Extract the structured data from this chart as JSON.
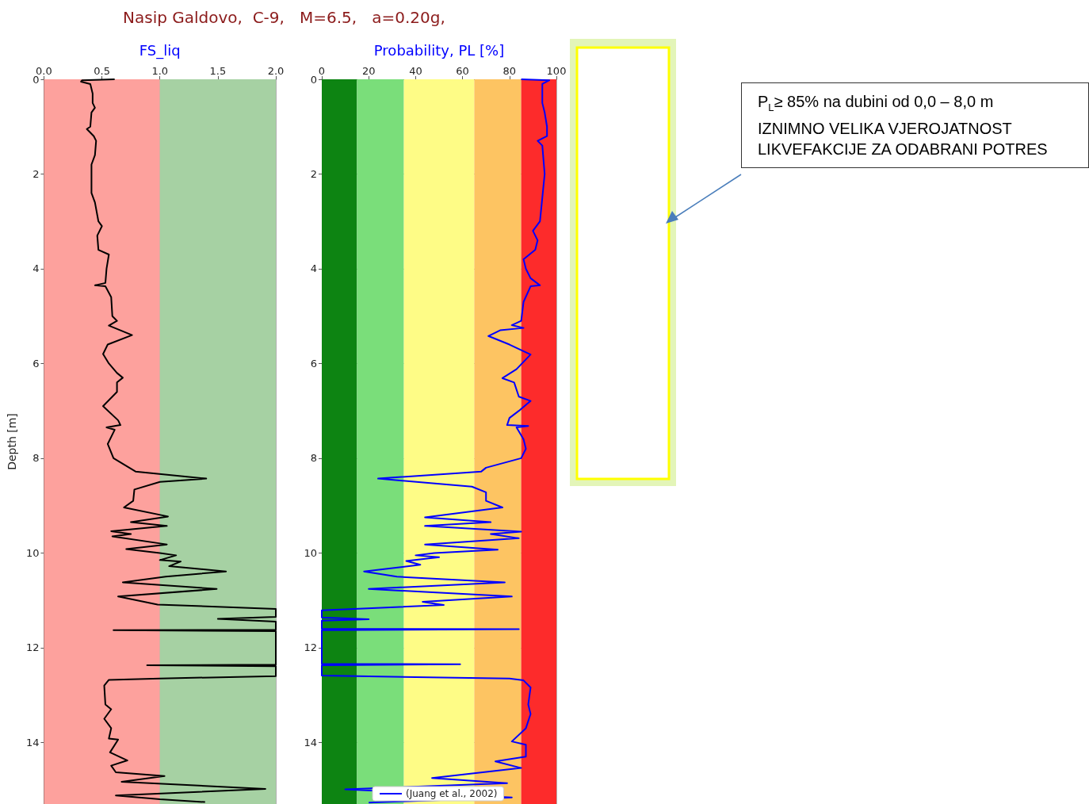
{
  "chart_data": [
    {
      "type": "line",
      "title": "Nasip Galdovo,  C-9,   M=6.5,   a=0.20g,",
      "xlabel": "FS_liq",
      "ylabel": "Depth [m]",
      "xlim": [
        0,
        2
      ],
      "xticks": [
        {
          "value": 0,
          "label": "0.0"
        },
        {
          "value": 0.5,
          "label": "0.5"
        },
        {
          "value": 1,
          "label": "1.0"
        },
        {
          "value": 1.5,
          "label": "1.5"
        },
        {
          "value": 2,
          "label": "2.0"
        }
      ],
      "ylim": [
        15.3,
        0
      ],
      "yticks": [
        0,
        2,
        4,
        6,
        8,
        10,
        12,
        14
      ],
      "grid": true,
      "marker": "none",
      "line_style": "solid",
      "bands": [
        {
          "axis": "x",
          "from": 0,
          "to": 1,
          "color": "#fda19d"
        },
        {
          "axis": "x",
          "from": 1,
          "to": 2,
          "color": "#a6d1a3"
        }
      ],
      "series": [
        {
          "color": "#000000",
          "x": [
            0.61,
            0.33,
            0.32,
            0.4,
            0.42,
            0.42,
            0.44,
            0.41,
            0.4,
            0.37,
            0.43,
            0.45,
            0.44,
            0.41,
            0.41,
            0.41,
            0.44,
            0.47,
            0.5,
            0.46,
            0.47,
            0.56,
            0.54,
            0.53,
            0.44,
            0.53,
            0.58,
            0.59,
            0.63,
            0.56,
            0.66,
            0.76,
            0.55,
            0.51,
            0.56,
            0.63,
            0.68,
            0.63,
            0.63,
            0.51,
            0.64,
            0.66,
            0.54,
            0.61,
            0.55,
            0.6,
            0.79,
            1.4,
            1.0,
            0.78,
            0.77,
            0.69,
            1.07,
            0.75,
            1.06,
            0.58,
            0.75,
            0.59,
            1.06,
            0.71,
            1.0,
            1.14,
            1.0,
            1.18,
            1.08,
            1.57,
            1.05,
            0.68,
            1.49,
            0.64,
            0.98,
            2.0,
            2.0,
            1.5,
            2.0,
            2.0,
            0.6,
            2.0,
            2.0,
            0.89,
            2.0,
            2.0,
            1.0,
            0.56,
            0.52,
            0.53,
            0.58,
            0.52,
            0.58,
            0.56,
            0.64,
            0.57,
            0.72,
            0.58,
            0.62,
            1.04,
            0.67,
            1.91,
            0.62,
            1.0,
            1.39
          ],
          "values": [
            0,
            0.02,
            0.05,
            0.1,
            0.3,
            0.5,
            0.6,
            0.7,
            1.0,
            1.05,
            1.2,
            1.3,
            1.6,
            1.8,
            2.0,
            2.4,
            2.6,
            3.0,
            3.1,
            3.3,
            3.6,
            3.7,
            4.0,
            4.3,
            4.35,
            4.37,
            4.6,
            5.0,
            5.1,
            5.2,
            5.3,
            5.4,
            5.6,
            5.8,
            6.0,
            6.2,
            6.3,
            6.4,
            6.6,
            6.9,
            7.2,
            7.3,
            7.35,
            7.4,
            7.7,
            8.0,
            8.28,
            8.43,
            8.5,
            8.66,
            8.9,
            9.04,
            9.23,
            9.35,
            9.43,
            9.54,
            9.6,
            9.65,
            9.82,
            9.92,
            10.0,
            10.05,
            10.15,
            10.18,
            10.28,
            10.39,
            10.5,
            10.62,
            10.76,
            10.92,
            11.09,
            11.18,
            11.35,
            11.39,
            11.45,
            11.62,
            11.63,
            11.65,
            12.36,
            12.37,
            12.39,
            12.6,
            12.65,
            12.68,
            12.8,
            13.2,
            13.3,
            13.5,
            13.7,
            13.92,
            13.94,
            14.21,
            14.38,
            14.49,
            14.63,
            14.71,
            14.83,
            14.98,
            15.12,
            15.2,
            15.26
          ]
        }
      ]
    },
    {
      "type": "line",
      "xlabel": "Probability, PL [%]",
      "xlim": [
        0,
        100
      ],
      "xticks": [
        0,
        20,
        40,
        60,
        80,
        100
      ],
      "ylim": [
        15.3,
        0
      ],
      "yticks": [
        0,
        2,
        4,
        6,
        8,
        10,
        12,
        14
      ],
      "grid": true,
      "marker": "none",
      "line_style": "solid",
      "legend": "bottom",
      "bands": [
        {
          "axis": "x",
          "from": 0,
          "to": 15,
          "color": "#0d8412"
        },
        {
          "axis": "x",
          "from": 15,
          "to": 35,
          "color": "#7ade7a"
        },
        {
          "axis": "x",
          "from": 35,
          "to": 65,
          "color": "#fefc86"
        },
        {
          "axis": "x",
          "from": 65,
          "to": 85,
          "color": "#fdc462"
        },
        {
          "axis": "x",
          "from": 85,
          "to": 100,
          "color": "#fd2b2b"
        }
      ],
      "annotations": [
        "P$_{L}$≥ 85% na dubini od 0,0 – 8,0 m\nIZNIMNO VELIKA VJEROJATNOST\nLIKVEFAKCIJE ZA ODABRANI POTRES"
      ],
      "series": [
        {
          "name": "(Juang et al., 2002)",
          "color": "#0000ff",
          "x": [
            85,
            97,
            94,
            94,
            95,
            96,
            96,
            92,
            94,
            95,
            94,
            93,
            90,
            92,
            91,
            86,
            87,
            89,
            93,
            89,
            86,
            85,
            81,
            86,
            76,
            71,
            80,
            89,
            83,
            77,
            82,
            84,
            89,
            84,
            80,
            79,
            88,
            83,
            86,
            87,
            85,
            70,
            68,
            24,
            64,
            70,
            70,
            77,
            44,
            72,
            44,
            85,
            72,
            84,
            44,
            75,
            48,
            40,
            50,
            36,
            42,
            18,
            32,
            78,
            20,
            81,
            43,
            52,
            0,
            0,
            20,
            0,
            0,
            84,
            0,
            0,
            59,
            0,
            0,
            80,
            86,
            89,
            88,
            89,
            87,
            81,
            87,
            87,
            74,
            85,
            47,
            79,
            10,
            81,
            20
          ],
          "values": [
            0,
            0.02,
            0.1,
            0.5,
            0.7,
            1.0,
            1.2,
            1.3,
            1.4,
            2.0,
            2.5,
            3.0,
            3.2,
            3.4,
            3.6,
            3.8,
            4.0,
            4.2,
            4.35,
            4.37,
            4.7,
            5.1,
            5.19,
            5.25,
            5.3,
            5.42,
            5.6,
            5.81,
            6.12,
            6.31,
            6.4,
            6.7,
            6.79,
            7.0,
            7.15,
            7.3,
            7.32,
            7.35,
            7.6,
            7.8,
            8.0,
            8.2,
            8.28,
            8.43,
            8.6,
            8.72,
            8.9,
            9.04,
            9.25,
            9.35,
            9.43,
            9.55,
            9.6,
            9.69,
            9.82,
            9.93,
            10.0,
            10.05,
            10.09,
            10.17,
            10.25,
            10.39,
            10.5,
            10.62,
            10.76,
            10.92,
            11.03,
            11.1,
            11.21,
            11.36,
            11.4,
            11.43,
            11.6,
            11.61,
            11.63,
            12.34,
            12.35,
            12.37,
            12.59,
            12.65,
            12.69,
            12.84,
            13.2,
            13.4,
            13.7,
            13.98,
            14.05,
            14.3,
            14.4,
            14.54,
            14.75,
            14.86,
            14.99,
            15.16,
            15.27
          ]
        }
      ]
    }
  ]
}
